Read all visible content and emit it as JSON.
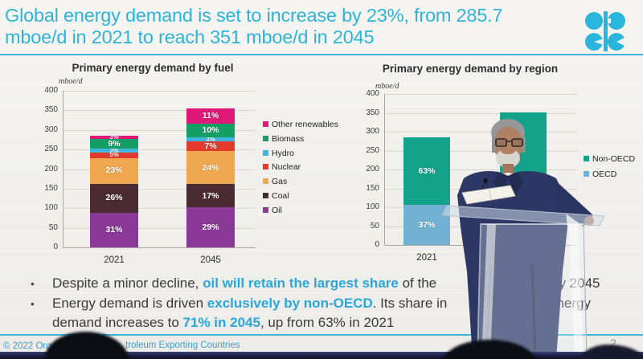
{
  "header": {
    "title_line1": "Global energy demand is set to increase by 23%, from 285.7",
    "title_line2": "mboe/d in 2021 to reach 351 mboe/d in 2045",
    "accent_color": "#2fb3d6"
  },
  "logo": {
    "name": "opec-logo",
    "color": "#2ab5dd"
  },
  "chart_data": [
    {
      "type": "bar",
      "stacked": true,
      "title": "Primary energy demand by fuel",
      "unit_label": "mboe/d",
      "categories": [
        "2021",
        "2045"
      ],
      "totals": [
        285.7,
        351
      ],
      "ylim": [
        0,
        400
      ],
      "yticks": [
        0,
        50,
        100,
        150,
        200,
        250,
        300,
        350,
        400
      ],
      "grid": true,
      "legend_position": "right",
      "series": [
        {
          "name": "Oil",
          "color": "#8a3a96",
          "pct": [
            31,
            29
          ],
          "labels": [
            "31%",
            "29%"
          ]
        },
        {
          "name": "Coal",
          "color": "#4a2b33",
          "pct": [
            26,
            17
          ],
          "labels": [
            "26%",
            "17%"
          ]
        },
        {
          "name": "Gas",
          "color": "#f0a850",
          "pct": [
            23,
            24
          ],
          "labels": [
            "23%",
            "24%"
          ]
        },
        {
          "name": "Nuclear",
          "color": "#e23b2e",
          "pct": [
            5,
            7
          ],
          "labels": [
            "5%",
            "7%"
          ]
        },
        {
          "name": "Hydro",
          "color": "#3eb6e0",
          "pct": [
            3,
            3
          ],
          "labels": [
            "3%",
            "3%"
          ]
        },
        {
          "name": "Biomass",
          "color": "#149e66",
          "pct": [
            9,
            10
          ],
          "labels": [
            "9%",
            "10%"
          ]
        },
        {
          "name": "Other renewables",
          "color": "#e0187a",
          "pct": [
            3,
            11
          ],
          "labels": [
            "3%",
            "11%"
          ]
        }
      ]
    },
    {
      "type": "bar",
      "stacked": true,
      "title": "Primary energy demand by region",
      "unit_label": "mboe/d",
      "categories": [
        "2021",
        "2045"
      ],
      "totals": [
        285.7,
        351
      ],
      "ylim": [
        0,
        400
      ],
      "yticks": [
        0,
        50,
        100,
        150,
        200,
        250,
        300,
        350,
        400
      ],
      "grid": true,
      "legend_position": "right",
      "series": [
        {
          "name": "OECD",
          "color": "#73b1d4",
          "pct": [
            37,
            29
          ],
          "labels": [
            "37%",
            ""
          ]
        },
        {
          "name": "Non-OECD",
          "color": "#13a28a",
          "pct": [
            63,
            71
          ],
          "labels": [
            "63%",
            ""
          ]
        }
      ]
    }
  ],
  "bullets": {
    "b1": {
      "pre": "Despite a minor decline, ",
      "highlight": "oil will retain the largest share",
      "post": " of the",
      "tail": "by 2045"
    },
    "b2": {
      "pre": "Energy demand is driven ",
      "highlight": "exclusively by non-OECD",
      "post": ". Its share in",
      "tail": "energy"
    },
    "b3": {
      "pre": "demand increases to ",
      "highlight": "71% in 2045",
      "post": ", up from 63% in 2021",
      "tail": ""
    }
  },
  "footer": {
    "copyright_prefix": "© 2022 Organ",
    "copyright_suffix": "troleum Exporting Countries",
    "page_number": "2"
  }
}
